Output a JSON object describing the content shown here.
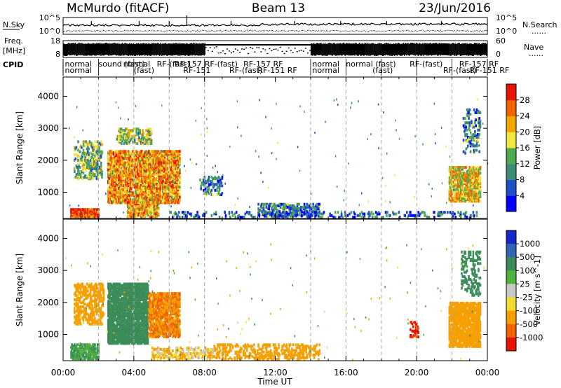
{
  "header": {
    "station": "McMurdo (fitACF)",
    "beam": "Beam 13",
    "date": "23/Jun/2016"
  },
  "panels": {
    "nsky_label": "N.Sky",
    "nsearch_label": "N.Search",
    "nsky_ticks": [
      "10^5",
      "10^0"
    ],
    "nsearch_ticks": [
      "10^5",
      "10^0"
    ],
    "freq_label_top": "Freq.",
    "freq_label_bottom": "[MHz]",
    "freq_ticks": [
      "18",
      "8"
    ],
    "nave_label": "Nave",
    "nave_ticks": [
      "60",
      "0"
    ],
    "cpid_label": "CPID",
    "cpid_entries": [
      {
        "t": 0.1,
        "row": 1,
        "text": "normal"
      },
      {
        "t": 0.1,
        "row": 2,
        "text": "normal"
      },
      {
        "t": 2.0,
        "row": 1,
        "text": "sound (fast)"
      },
      {
        "t": 3.4,
        "row": 1,
        "text": "normal"
      },
      {
        "t": 4.0,
        "row": 2,
        "text": "(fast)"
      },
      {
        "t": 5.3,
        "row": 1,
        "text": "RF-(fast)"
      },
      {
        "t": 6.3,
        "row": 1,
        "text": "RF-157"
      },
      {
        "t": 6.8,
        "row": 2,
        "text": "RF-151"
      },
      {
        "t": 8.0,
        "row": 1,
        "text": "RF-(fast)"
      },
      {
        "t": 9.4,
        "row": 2,
        "text": "RF-(fast)"
      },
      {
        "t": 10.2,
        "row": 1,
        "text": "RF-157  RF"
      },
      {
        "t": 11.0,
        "row": 2,
        "text": "RF-151  RF"
      },
      {
        "t": 14.1,
        "row": 1,
        "text": "normal"
      },
      {
        "t": 14.1,
        "row": 2,
        "text": "normal"
      },
      {
        "t": 16.0,
        "row": 1,
        "text": "normal (fast)"
      },
      {
        "t": 17.5,
        "row": 2,
        "text": "(fast)"
      },
      {
        "t": 19.6,
        "row": 1,
        "text": "RF-(fast)"
      },
      {
        "t": 21.5,
        "row": 2,
        "text": "RF-(fast)"
      },
      {
        "t": 22.4,
        "row": 1,
        "text": "RF-157  RF"
      },
      {
        "t": 23.0,
        "row": 2,
        "text": "RF-151  RF"
      }
    ]
  },
  "legend_dots": "......",
  "chart_data": [
    {
      "type": "heatmap",
      "name": "power",
      "xlabel": "",
      "ylabel": "Slant Range [km]",
      "x_range_hours": [
        0,
        24
      ],
      "ylim": [
        180,
        4600
      ],
      "yticks": [
        1000,
        2000,
        3000,
        4000
      ],
      "colorbar": {
        "label": "Power [dB]",
        "ticks": [
          "28",
          "24",
          "20",
          "16",
          "12",
          "8",
          "4"
        ],
        "range": [
          0,
          32
        ],
        "colors": [
          "#0000ff",
          "#1e50c8",
          "#3c8c78",
          "#50aa50",
          "#f0e640",
          "#f5a500",
          "#f06400",
          "#e61400"
        ]
      },
      "echo_regions": [
        {
          "t0": 0.4,
          "t1": 2.0,
          "r0": 220,
          "r1": 480,
          "power": 27,
          "density": 0.85
        },
        {
          "t0": 0.6,
          "t1": 2.2,
          "r0": 1400,
          "r1": 2600,
          "power": 14,
          "density": 0.3
        },
        {
          "t0": 2.5,
          "t1": 6.6,
          "r0": 650,
          "r1": 2300,
          "power": 23,
          "density": 0.6
        },
        {
          "t0": 3.0,
          "t1": 5.0,
          "r0": 2500,
          "r1": 3000,
          "power": 15,
          "density": 0.35
        },
        {
          "t0": 3.6,
          "t1": 5.4,
          "r0": 220,
          "r1": 700,
          "power": 22,
          "density": 0.5
        },
        {
          "t0": 7.7,
          "t1": 9.0,
          "r0": 900,
          "r1": 1500,
          "power": 9,
          "density": 0.25
        },
        {
          "t0": 11.0,
          "t1": 14.5,
          "r0": 230,
          "r1": 650,
          "power": 9,
          "density": 0.35
        },
        {
          "t0": 6.0,
          "t1": 23.5,
          "r0": 200,
          "r1": 400,
          "power": 7,
          "density": 0.18
        },
        {
          "t0": 21.8,
          "t1": 23.6,
          "r0": 700,
          "r1": 1800,
          "power": 20,
          "density": 0.6
        },
        {
          "t0": 22.6,
          "t1": 23.6,
          "r0": 2200,
          "r1": 3600,
          "power": 10,
          "density": 0.2
        }
      ]
    },
    {
      "type": "heatmap",
      "name": "velocity",
      "xlabel": "Time UT",
      "ylabel": "Slant Range [km]",
      "x_range_hours": [
        0,
        24
      ],
      "xticks": [
        "00:00",
        "04:00",
        "08:00",
        "12:00",
        "16:00",
        "20:00",
        "00:00"
      ],
      "ylim": [
        180,
        4600
      ],
      "yticks": [
        1000,
        2000,
        3000,
        4000
      ],
      "colorbar": {
        "label": "Velocity [m s^-1]",
        "ticks": [
          "1000",
          "500",
          "100",
          "25",
          "-25",
          "-100",
          "-500",
          "-1000"
        ],
        "colors": [
          "#1428c8",
          "#3264b4",
          "#3c8c5a",
          "#50b43c",
          "#c8c8c8",
          "#f0dc32",
          "#f5a000",
          "#f06400",
          "#e61400"
        ]
      },
      "echo_regions": [
        {
          "t0": 0.4,
          "t1": 2.0,
          "r0": 220,
          "r1": 700,
          "vel": 60,
          "density": 0.6
        },
        {
          "t0": 0.6,
          "t1": 2.3,
          "r0": 1300,
          "r1": 2600,
          "vel": -120,
          "density": 0.3
        },
        {
          "t0": 2.5,
          "t1": 4.8,
          "r0": 700,
          "r1": 2600,
          "vel": 150,
          "density": 0.65
        },
        {
          "t0": 4.8,
          "t1": 6.6,
          "r0": 900,
          "r1": 2300,
          "vel": -300,
          "density": 0.55
        },
        {
          "t0": 5.0,
          "t1": 8.5,
          "r0": 200,
          "r1": 600,
          "vel": -50,
          "density": 0.3
        },
        {
          "t0": 8.5,
          "t1": 14.5,
          "r0": 200,
          "r1": 700,
          "vel": -150,
          "density": 0.25
        },
        {
          "t0": 19.6,
          "t1": 20.1,
          "r0": 900,
          "r1": 1400,
          "vel": -800,
          "density": 0.4
        },
        {
          "t0": 21.8,
          "t1": 23.6,
          "r0": 600,
          "r1": 2000,
          "vel": -200,
          "density": 0.6
        },
        {
          "t0": 22.5,
          "t1": 23.6,
          "r0": 2200,
          "r1": 3600,
          "vel": 120,
          "density": 0.2
        }
      ]
    }
  ]
}
